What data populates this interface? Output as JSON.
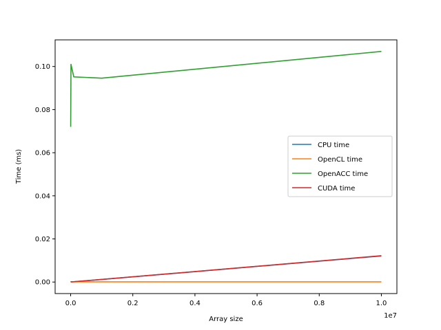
{
  "chart_data": {
    "type": "line",
    "xlabel": "Array size",
    "ylabel": "Time (ms)",
    "x_offset_label": "1e7",
    "xlim": [
      -500000,
      10500000
    ],
    "ylim": [
      -0.00535,
      0.11235
    ],
    "x_ticks": [
      0,
      2000000,
      4000000,
      6000000,
      8000000,
      10000000
    ],
    "x_tick_labels": [
      "0.0",
      "0.2",
      "0.4",
      "0.6",
      "0.8",
      "1.0"
    ],
    "y_ticks": [
      0.0,
      0.02,
      0.04,
      0.06,
      0.08,
      0.1
    ],
    "y_tick_labels": [
      "0.00",
      "0.02",
      "0.04",
      "0.06",
      "0.08",
      "0.10"
    ],
    "grid": false,
    "legend_position": "center-right",
    "series": [
      {
        "name": "CPU time",
        "color": "#1f77b4",
        "x": [
          1000,
          10000,
          100000,
          1000000,
          10000000
        ],
        "y": [
          0.0,
          0.0001,
          0.00015,
          0.0012,
          0.0121
        ]
      },
      {
        "name": "OpenCL time",
        "color": "#ff7f0e",
        "x": [
          1000,
          10000,
          100000,
          1000000,
          10000000
        ],
        "y": [
          0.0,
          0.0,
          0.0001,
          0.0001,
          0.0001
        ]
      },
      {
        "name": "OpenACC time",
        "color": "#2ca02c",
        "x": [
          1000,
          10000,
          100000,
          1000000,
          10000000
        ],
        "y": [
          0.072,
          0.101,
          0.0952,
          0.0946,
          0.107
        ]
      },
      {
        "name": "CUDA time",
        "color": "#d62728",
        "x": [
          1000,
          10000,
          100000,
          1000000,
          10000000
        ],
        "y": [
          0.0,
          0.0001,
          0.00015,
          0.0012,
          0.0122
        ]
      }
    ]
  }
}
